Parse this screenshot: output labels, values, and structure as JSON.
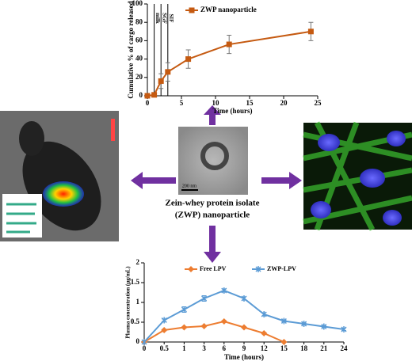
{
  "chart_data": [
    {
      "type": "line",
      "x_label": "Time (hours)",
      "y_label": "Cumulative % of cargo released",
      "x": [
        0,
        1,
        2,
        3,
        6,
        12,
        24
      ],
      "xlim": [
        0,
        25
      ],
      "xticks": [
        0,
        5,
        10,
        15,
        20,
        25
      ],
      "ylim": [
        0,
        100
      ],
      "yticks": [
        0,
        20,
        40,
        60,
        80,
        100
      ],
      "legend": "upper left",
      "phases": [
        {
          "label": "milk",
          "x": 1
        },
        {
          "label": "SGF",
          "x": 2
        },
        {
          "label": "SIF",
          "x": 3
        }
      ],
      "series": [
        {
          "name": "ZWP nanoparticle",
          "color": "#c55a11",
          "marker": "square",
          "values": [
            0,
            1,
            16,
            26,
            40,
            56,
            70
          ],
          "errors": [
            0,
            2,
            8,
            10,
            10,
            10,
            10
          ]
        }
      ]
    },
    {
      "type": "line",
      "x_label": "Time (hours)",
      "y_label": "Plasma concentration (µg/mL)",
      "categories": [
        "0",
        "0.5",
        "1",
        "3",
        "6",
        "9",
        "12",
        "15",
        "18",
        "21",
        "24"
      ],
      "ylim": [
        0,
        2
      ],
      "yticks": [
        0,
        0.5,
        1,
        1.5,
        2
      ],
      "legend": "upper center",
      "series": [
        {
          "name": "Free LPV",
          "color": "#ed7d31",
          "marker": "diamond",
          "values": [
            0,
            0.3,
            0.37,
            0.4,
            0.52,
            0.37,
            0.22,
            0,
            null,
            null,
            null
          ],
          "errors": [
            0,
            0.02,
            0.02,
            0.02,
            0.02,
            0.02,
            0.02,
            0,
            null,
            null,
            null
          ]
        },
        {
          "name": "ZWP-LPV",
          "color": "#5b9bd5",
          "marker": "star",
          "values": [
            0,
            0.55,
            0.82,
            1.1,
            1.3,
            1.1,
            0.7,
            0.53,
            0.46,
            0.39,
            0.32
          ],
          "errors": [
            0,
            0.03,
            0.07,
            0.07,
            0.04,
            0.04,
            0.04,
            0.02,
            0.02,
            0.02,
            0.03
          ]
        }
      ]
    }
  ],
  "center_caption": [
    "Zein-whey protein isolate",
    "(ZWP) nanoparticle"
  ],
  "scale_bar": "200 nm"
}
